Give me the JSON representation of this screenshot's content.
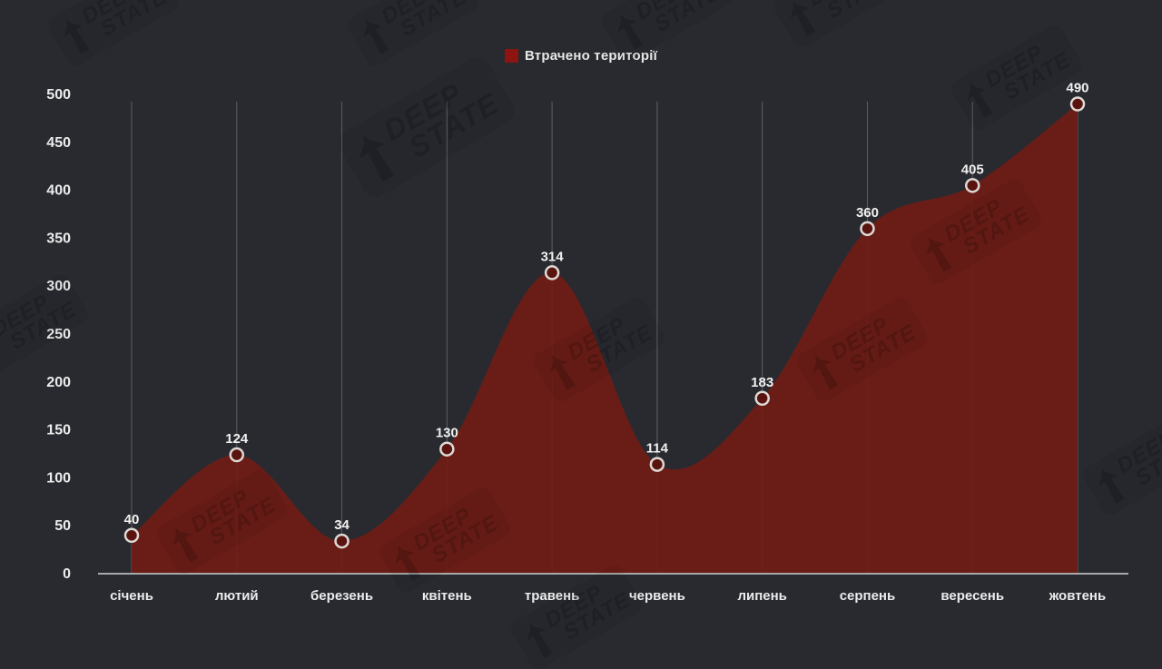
{
  "legend": {
    "label": "Втрачено території",
    "swatch_color": "#8d1511"
  },
  "watermark": {
    "line1": "DEEP",
    "line2": "STATE"
  },
  "chart_data": {
    "type": "area",
    "title": "",
    "categories": [
      "січень",
      "лютий",
      "березень",
      "квітень",
      "травень",
      "червень",
      "липень",
      "серпень",
      "вересень",
      "жовтень"
    ],
    "series": [
      {
        "name": "Втрачено території",
        "values": [
          40,
          124,
          34,
          130,
          314,
          114,
          183,
          360,
          405,
          490
        ]
      }
    ],
    "xlabel": "",
    "ylabel": "",
    "ylim": [
      0,
      500
    ],
    "ytick_step": 50,
    "grid": "vertical",
    "legend_position": "top",
    "colors": {
      "background": "#282a30",
      "area": "#701c15",
      "marker_fill": "#5a1410",
      "marker_stroke": "#ddd9d4",
      "axis_line": "#a8a8a8",
      "gridline": "rgba(255,255,255,0.25)",
      "tick_text": "#ececec",
      "value_label": "#f2f1ef"
    }
  }
}
